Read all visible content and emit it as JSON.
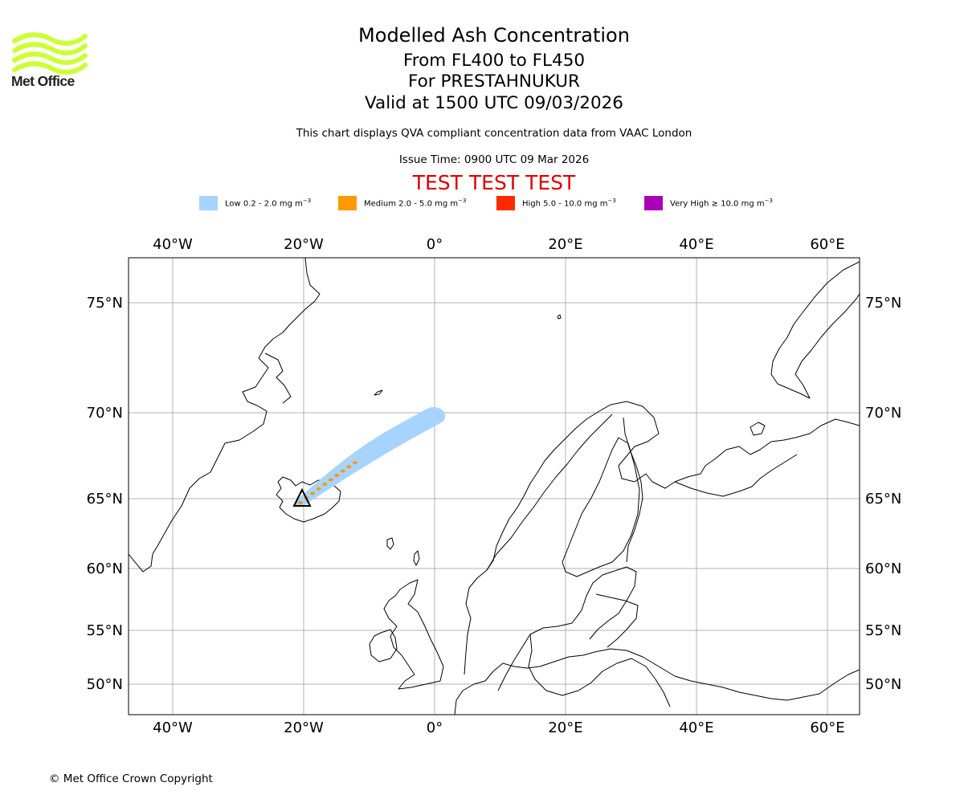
{
  "logo": {
    "text": "Met Office",
    "icon": "met-office-wave-logo",
    "color": "#ccff33"
  },
  "header": {
    "title": "Modelled Ash Concentration",
    "levels": "From FL400 to FL450",
    "volcano": "For PRESTAHNUKUR",
    "valid": "Valid at 1500 UTC 09/03/2026",
    "compliance": "This chart displays QVA compliant concentration data from VAAC London",
    "issue_time": "Issue Time: 0900 UTC 09 Mar 2026",
    "test_banner": "TEST TEST TEST",
    "test_color": "#dd0000"
  },
  "legend": [
    {
      "label": "Low 0.2 - 2.0 mg m",
      "exp": "−3",
      "color": "#a6d4ff"
    },
    {
      "label": "Medium 2.0 - 5.0 mg m",
      "exp": "−3",
      "color": "#ff9900"
    },
    {
      "label": "High 5.0 - 10.0 mg m",
      "exp": "−3",
      "color": "#ff2a00"
    },
    {
      "label": "Very High  ≥  10.0 mg m",
      "exp": "−3",
      "color": "#aa00b8"
    }
  ],
  "map": {
    "lon_range": [
      -46.7,
      64.7
    ],
    "lat_range": [
      48,
      77
    ],
    "lon_ticks": [
      "40°W",
      "20°W",
      "0°",
      "20°E",
      "40°E",
      "60°E"
    ],
    "lon_tick_values": [
      -40,
      -20,
      0,
      20,
      40,
      60
    ],
    "lat_ticks": [
      "75°N",
      "70°N",
      "65°N",
      "60°N",
      "55°N",
      "50°N"
    ],
    "lat_tick_values": [
      75,
      70,
      65,
      60,
      55,
      50
    ],
    "grid": true,
    "plume_color": "#a6d4ff",
    "core_color": "#ff9900",
    "volcano_marker": "triangle"
  },
  "footer": {
    "copyright": "© Met Office Crown Copyright"
  }
}
